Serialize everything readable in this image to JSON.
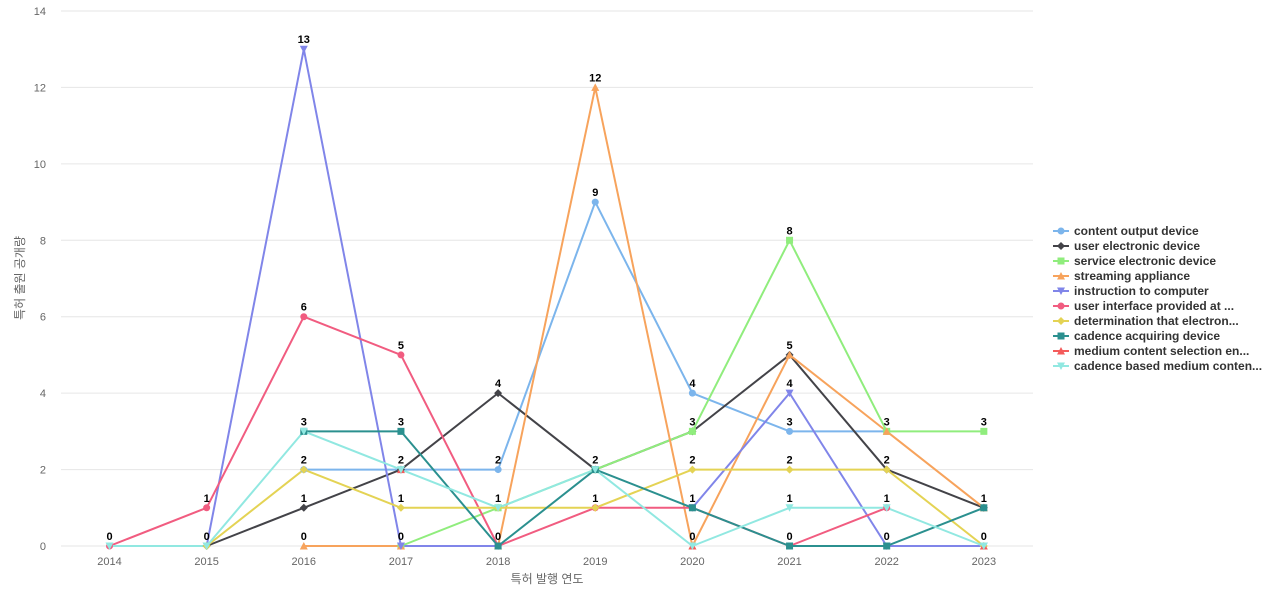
{
  "chart_data": {
    "type": "line",
    "xlabel": "특허 발행 연도",
    "ylabel": "특허 출원 공개량",
    "ylim": [
      0,
      14
    ],
    "yticks": [
      0,
      2,
      4,
      6,
      8,
      10,
      12,
      14
    ],
    "grid": true,
    "legend_position": "right",
    "x": [
      "2014",
      "2015",
      "2016",
      "2017",
      "2018",
      "2019",
      "2020",
      "2021",
      "2022",
      "2023"
    ],
    "series": [
      {
        "name": "content output device",
        "color": "#7cb5ec",
        "marker": "circle",
        "values": [
          null,
          null,
          2,
          2,
          2,
          9,
          4,
          3,
          3,
          null
        ]
      },
      {
        "name": "user electronic device",
        "color": "#434348",
        "marker": "diamond",
        "values": [
          null,
          0,
          1,
          2,
          4,
          2,
          3,
          5,
          2,
          1
        ]
      },
      {
        "name": "service electronic device",
        "color": "#90ed7d",
        "marker": "square",
        "values": [
          null,
          null,
          null,
          0,
          1,
          2,
          3,
          8,
          3,
          3
        ]
      },
      {
        "name": "streaming appliance",
        "color": "#f7a35c",
        "marker": "triangle",
        "values": [
          null,
          null,
          0,
          0,
          0,
          12,
          0,
          5,
          3,
          1
        ]
      },
      {
        "name": "instruction to computer",
        "color": "#8085e9",
        "marker": "triangle-down",
        "values": [
          null,
          0,
          13,
          0,
          0,
          null,
          1,
          4,
          0,
          0
        ]
      },
      {
        "name": "user interface provided at ...",
        "color": "#f15c80",
        "marker": "circle",
        "values": [
          0,
          1,
          6,
          5,
          0,
          1,
          1,
          0,
          1,
          null
        ]
      },
      {
        "name": "determination that electron...",
        "color": "#e4d354",
        "marker": "diamond",
        "values": [
          null,
          0,
          2,
          1,
          1,
          1,
          2,
          2,
          2,
          0
        ]
      },
      {
        "name": "cadence acquiring device",
        "color": "#2b908f",
        "marker": "square",
        "values": [
          null,
          null,
          3,
          3,
          0,
          2,
          1,
          0,
          0,
          1
        ]
      },
      {
        "name": "medium content selection en...",
        "color": "#f45b5b",
        "marker": "triangle",
        "values": [
          null,
          null,
          null,
          2,
          null,
          null,
          0,
          null,
          null,
          0
        ]
      },
      {
        "name": "cadence based medium conten...",
        "color": "#91e8e1",
        "marker": "triangle-down",
        "values": [
          0,
          0,
          3,
          2,
          1,
          2,
          0,
          1,
          1,
          0
        ]
      }
    ],
    "data_labels": [
      {
        "x": "2014",
        "y": 0,
        "text": "0"
      },
      {
        "x": "2015",
        "y": 1,
        "text": "1"
      },
      {
        "x": "2015",
        "y": 0,
        "text": "0"
      },
      {
        "x": "2016",
        "y": 13,
        "text": "13"
      },
      {
        "x": "2016",
        "y": 6,
        "text": "6"
      },
      {
        "x": "2016",
        "y": 3,
        "text": "3"
      },
      {
        "x": "2016",
        "y": 2,
        "text": "2"
      },
      {
        "x": "2016",
        "y": 1,
        "text": "1"
      },
      {
        "x": "2016",
        "y": 0,
        "text": "0"
      },
      {
        "x": "2017",
        "y": 5,
        "text": "5"
      },
      {
        "x": "2017",
        "y": 3,
        "text": "3"
      },
      {
        "x": "2017",
        "y": 2,
        "text": "2"
      },
      {
        "x": "2017",
        "y": 1,
        "text": "1"
      },
      {
        "x": "2017",
        "y": 0,
        "text": "0"
      },
      {
        "x": "2018",
        "y": 4,
        "text": "4"
      },
      {
        "x": "2018",
        "y": 2,
        "text": "2"
      },
      {
        "x": "2018",
        "y": 1,
        "text": "1"
      },
      {
        "x": "2018",
        "y": 0,
        "text": "0"
      },
      {
        "x": "2019",
        "y": 12,
        "text": "12"
      },
      {
        "x": "2019",
        "y": 9,
        "text": "9"
      },
      {
        "x": "2019",
        "y": 2,
        "text": "2"
      },
      {
        "x": "2019",
        "y": 1,
        "text": "1"
      },
      {
        "x": "2020",
        "y": 4,
        "text": "4"
      },
      {
        "x": "2020",
        "y": 3,
        "text": "3"
      },
      {
        "x": "2020",
        "y": 2,
        "text": "2"
      },
      {
        "x": "2020",
        "y": 1,
        "text": "1"
      },
      {
        "x": "2020",
        "y": 0,
        "text": "0"
      },
      {
        "x": "2021",
        "y": 8,
        "text": "8"
      },
      {
        "x": "2021",
        "y": 5,
        "text": "5"
      },
      {
        "x": "2021",
        "y": 4,
        "text": "4"
      },
      {
        "x": "2021",
        "y": 3,
        "text": "3"
      },
      {
        "x": "2021",
        "y": 2,
        "text": "2"
      },
      {
        "x": "2021",
        "y": 1,
        "text": "1"
      },
      {
        "x": "2021",
        "y": 0,
        "text": "0"
      },
      {
        "x": "2022",
        "y": 3,
        "text": "3"
      },
      {
        "x": "2022",
        "y": 2,
        "text": "2"
      },
      {
        "x": "2022",
        "y": 1,
        "text": "1"
      },
      {
        "x": "2022",
        "y": 0,
        "text": "0"
      },
      {
        "x": "2023",
        "y": 3,
        "text": "3"
      },
      {
        "x": "2023",
        "y": 1,
        "text": "1"
      },
      {
        "x": "2023",
        "y": 0,
        "text": "0"
      }
    ]
  }
}
